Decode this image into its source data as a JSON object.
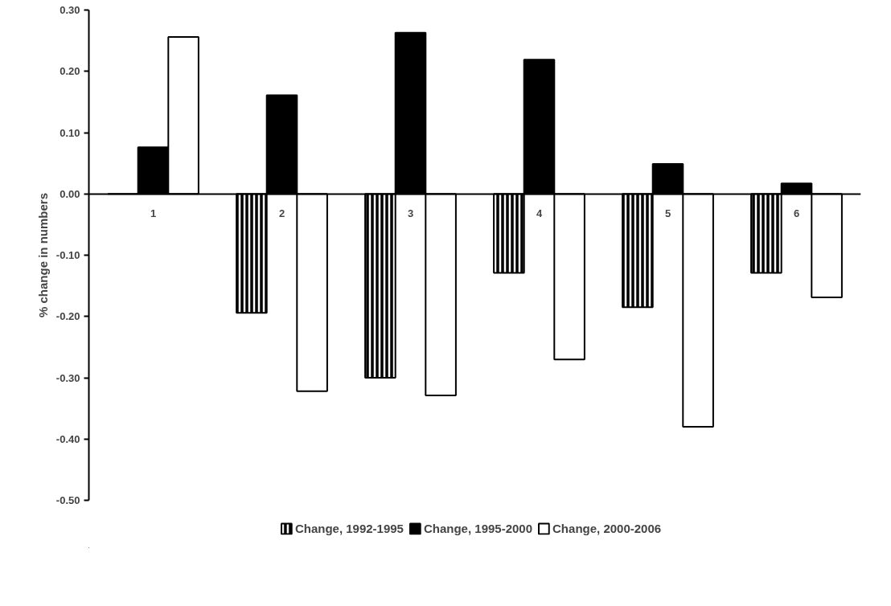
{
  "chart_data": {
    "type": "bar",
    "ylabel": "% change in numbers",
    "categories": [
      "1",
      "2",
      "3",
      "4",
      "5",
      "6"
    ],
    "series": [
      {
        "name": "Change, 1992-1995",
        "color": "#000000",
        "values": [
          0,
          -0.194,
          -0.3,
          -0.129,
          -0.185,
          -0.129
        ]
      },
      {
        "name": "Change, 1995-2000",
        "color": "#000000",
        "values": [
          0.076,
          0.161,
          0.263,
          0.219,
          0.049,
          0.017
        ]
      },
      {
        "name": "Change, 2000-2006",
        "color": "#ffffff",
        "values": [
          0.256,
          -0.322,
          -0.329,
          -0.27,
          -0.38,
          -0.169
        ]
      }
    ],
    "ylim": [
      -0.5,
      0.3
    ],
    "yticks": [
      {
        "value": -0.5,
        "label": "-0.50"
      },
      {
        "value": -0.4,
        "label": "-0.40"
      },
      {
        "value": -0.3,
        "label": "-0.30"
      },
      {
        "value": -0.2,
        "label": "-0.20"
      },
      {
        "value": -0.1,
        "label": "-0.10"
      },
      {
        "value": 0,
        "label": "0.00"
      },
      {
        "value": 0.1,
        "label": "0.10"
      },
      {
        "value": 0.2,
        "label": "0.20"
      },
      {
        "value": 0.3,
        "label": "0.30"
      }
    ],
    "grid": false,
    "legend": "bottom"
  }
}
